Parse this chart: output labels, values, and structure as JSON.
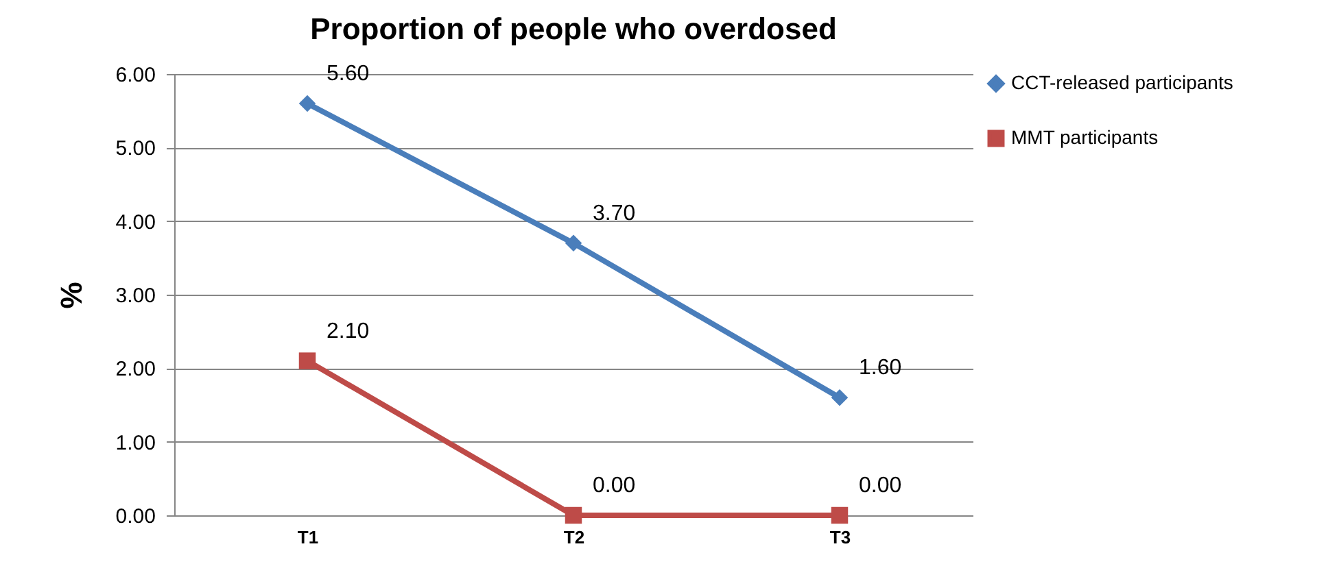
{
  "chart_data": {
    "type": "line",
    "title": "Proportion of people who overdosed",
    "ylabel": "%",
    "categories": [
      "T1",
      "T2",
      "T3"
    ],
    "series": [
      {
        "name": "CCT-released participants",
        "color": "#4a7ebb",
        "marker": "diamond",
        "values": [
          5.6,
          3.7,
          1.6
        ],
        "value_labels": [
          "5.60",
          "3.70",
          "1.60"
        ]
      },
      {
        "name": "MMT participants",
        "color": "#be4b48",
        "marker": "square",
        "values": [
          2.1,
          0,
          0
        ],
        "value_labels": [
          "2.10",
          "0.00",
          "0.00"
        ]
      }
    ],
    "ylim": [
      0,
      6
    ],
    "yticks": [
      {
        "value": 0,
        "label": "0.00"
      },
      {
        "value": 1,
        "label": "1.00"
      },
      {
        "value": 2,
        "label": "2.00"
      },
      {
        "value": 3,
        "label": "3.00"
      },
      {
        "value": 4,
        "label": "4.00"
      },
      {
        "value": 5,
        "label": "5.00"
      },
      {
        "value": 6,
        "label": "6.00"
      }
    ],
    "grid": "y",
    "legend": "right",
    "line_style": "solid"
  }
}
